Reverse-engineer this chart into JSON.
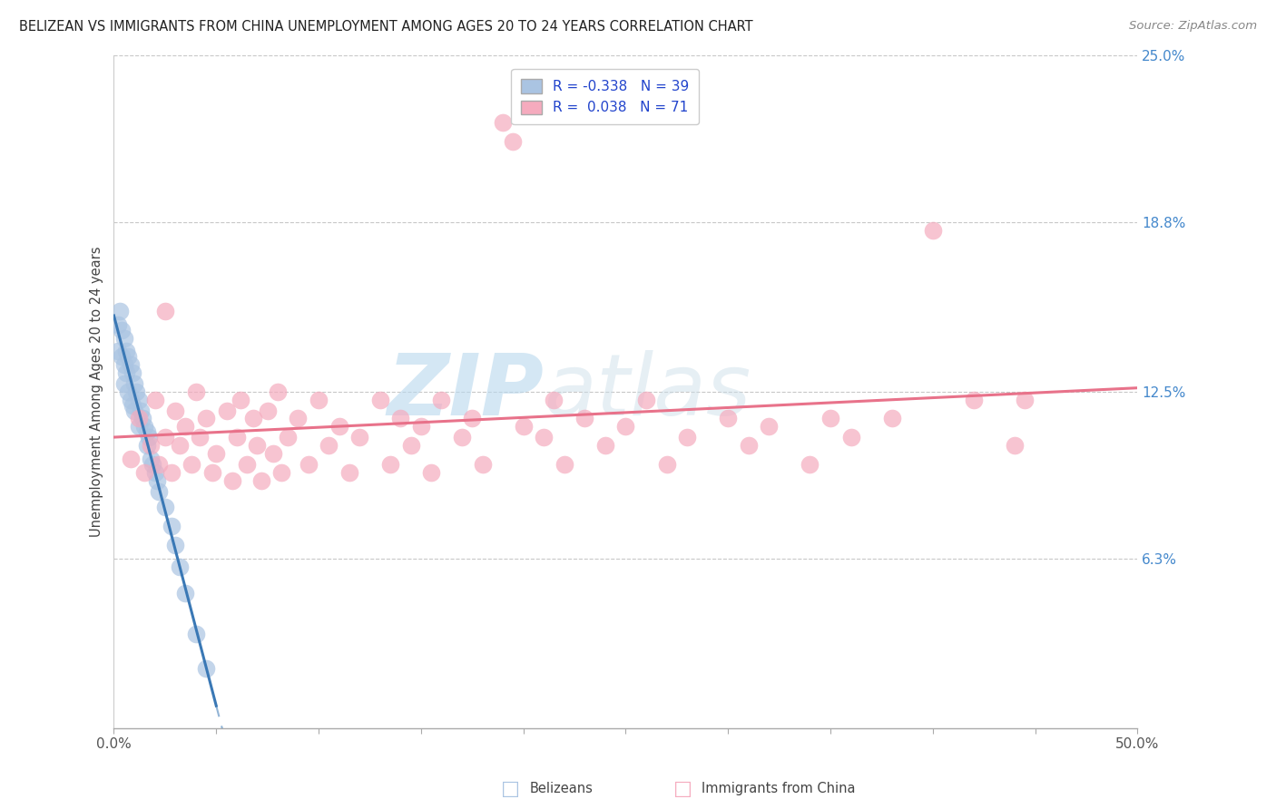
{
  "title": "BELIZEAN VS IMMIGRANTS FROM CHINA UNEMPLOYMENT AMONG AGES 20 TO 24 YEARS CORRELATION CHART",
  "source": "Source: ZipAtlas.com",
  "ylabel": "Unemployment Among Ages 20 to 24 years",
  "xlim": [
    0.0,
    0.5
  ],
  "ylim": [
    0.0,
    0.25
  ],
  "legend_r_belizean": "-0.338",
  "legend_n_belizean": "39",
  "legend_r_china": "0.038",
  "legend_n_china": "71",
  "belizean_color": "#aac4e2",
  "china_color": "#f5abbe",
  "belizean_line_color": "#3a78b5",
  "china_line_color": "#e8728a",
  "background_color": "#ffffff",
  "watermark_zip": "ZIP",
  "watermark_atlas": "atlas",
  "belizean_x": [
    0.002,
    0.002,
    0.003,
    0.004,
    0.004,
    0.005,
    0.005,
    0.005,
    0.006,
    0.006,
    0.007,
    0.007,
    0.008,
    0.008,
    0.009,
    0.009,
    0.01,
    0.01,
    0.011,
    0.012,
    0.012,
    0.013,
    0.014,
    0.015,
    0.016,
    0.016,
    0.017,
    0.018,
    0.019,
    0.02,
    0.021,
    0.022,
    0.025,
    0.028,
    0.03,
    0.032,
    0.035,
    0.04,
    0.045
  ],
  "belizean_y": [
    0.15,
    0.14,
    0.155,
    0.148,
    0.138,
    0.145,
    0.135,
    0.128,
    0.14,
    0.132,
    0.138,
    0.125,
    0.135,
    0.122,
    0.132,
    0.12,
    0.128,
    0.118,
    0.125,
    0.122,
    0.112,
    0.118,
    0.115,
    0.112,
    0.11,
    0.105,
    0.108,
    0.1,
    0.098,
    0.095,
    0.092,
    0.088,
    0.082,
    0.075,
    0.068,
    0.06,
    0.05,
    0.035,
    0.022
  ],
  "china_x": [
    0.008,
    0.012,
    0.015,
    0.018,
    0.02,
    0.022,
    0.025,
    0.025,
    0.028,
    0.03,
    0.032,
    0.035,
    0.038,
    0.04,
    0.042,
    0.045,
    0.048,
    0.05,
    0.055,
    0.058,
    0.06,
    0.062,
    0.065,
    0.068,
    0.07,
    0.072,
    0.075,
    0.078,
    0.08,
    0.082,
    0.085,
    0.09,
    0.095,
    0.1,
    0.105,
    0.11,
    0.115,
    0.12,
    0.13,
    0.135,
    0.14,
    0.145,
    0.15,
    0.155,
    0.16,
    0.17,
    0.175,
    0.18,
    0.19,
    0.195,
    0.2,
    0.21,
    0.215,
    0.22,
    0.23,
    0.24,
    0.25,
    0.26,
    0.27,
    0.28,
    0.3,
    0.31,
    0.32,
    0.34,
    0.35,
    0.36,
    0.38,
    0.4,
    0.42,
    0.44,
    0.445
  ],
  "china_y": [
    0.1,
    0.115,
    0.095,
    0.105,
    0.122,
    0.098,
    0.155,
    0.108,
    0.095,
    0.118,
    0.105,
    0.112,
    0.098,
    0.125,
    0.108,
    0.115,
    0.095,
    0.102,
    0.118,
    0.092,
    0.108,
    0.122,
    0.098,
    0.115,
    0.105,
    0.092,
    0.118,
    0.102,
    0.125,
    0.095,
    0.108,
    0.115,
    0.098,
    0.122,
    0.105,
    0.112,
    0.095,
    0.108,
    0.122,
    0.098,
    0.115,
    0.105,
    0.112,
    0.095,
    0.122,
    0.108,
    0.115,
    0.098,
    0.225,
    0.218,
    0.112,
    0.108,
    0.122,
    0.098,
    0.115,
    0.105,
    0.112,
    0.122,
    0.098,
    0.108,
    0.115,
    0.105,
    0.112,
    0.098,
    0.115,
    0.108,
    0.115,
    0.185,
    0.122,
    0.105,
    0.122
  ]
}
